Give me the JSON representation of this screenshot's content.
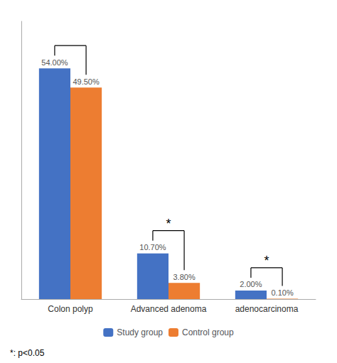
{
  "chart_data": {
    "type": "bar",
    "categories": [
      "Colon polyp",
      "Advanced adenoma",
      "adenocarcinoma"
    ],
    "series": [
      {
        "name": "Study group",
        "color": "#4472C4",
        "values": [
          54.0,
          10.7,
          2.0
        ],
        "value_labels": [
          "54.00%",
          "10.70%",
          "2.00%"
        ]
      },
      {
        "name": "Control group",
        "color": "#ED7D31",
        "values": [
          49.5,
          3.8,
          0.1
        ],
        "value_labels": [
          "49.50%",
          "3.80%",
          "0.10%"
        ]
      }
    ],
    "ylim": [
      0,
      65
    ],
    "yticks": [],
    "tick_labels": "x",
    "grid": false,
    "legend": "bottom",
    "data_labels": true,
    "brackets": [
      {
        "category": "Colon polyp"
      },
      {
        "category": "Advanced adenoma",
        "label": "*"
      },
      {
        "category": "adenocarcinoma",
        "label": "*"
      }
    ],
    "footnote": "*: p<0.05"
  }
}
